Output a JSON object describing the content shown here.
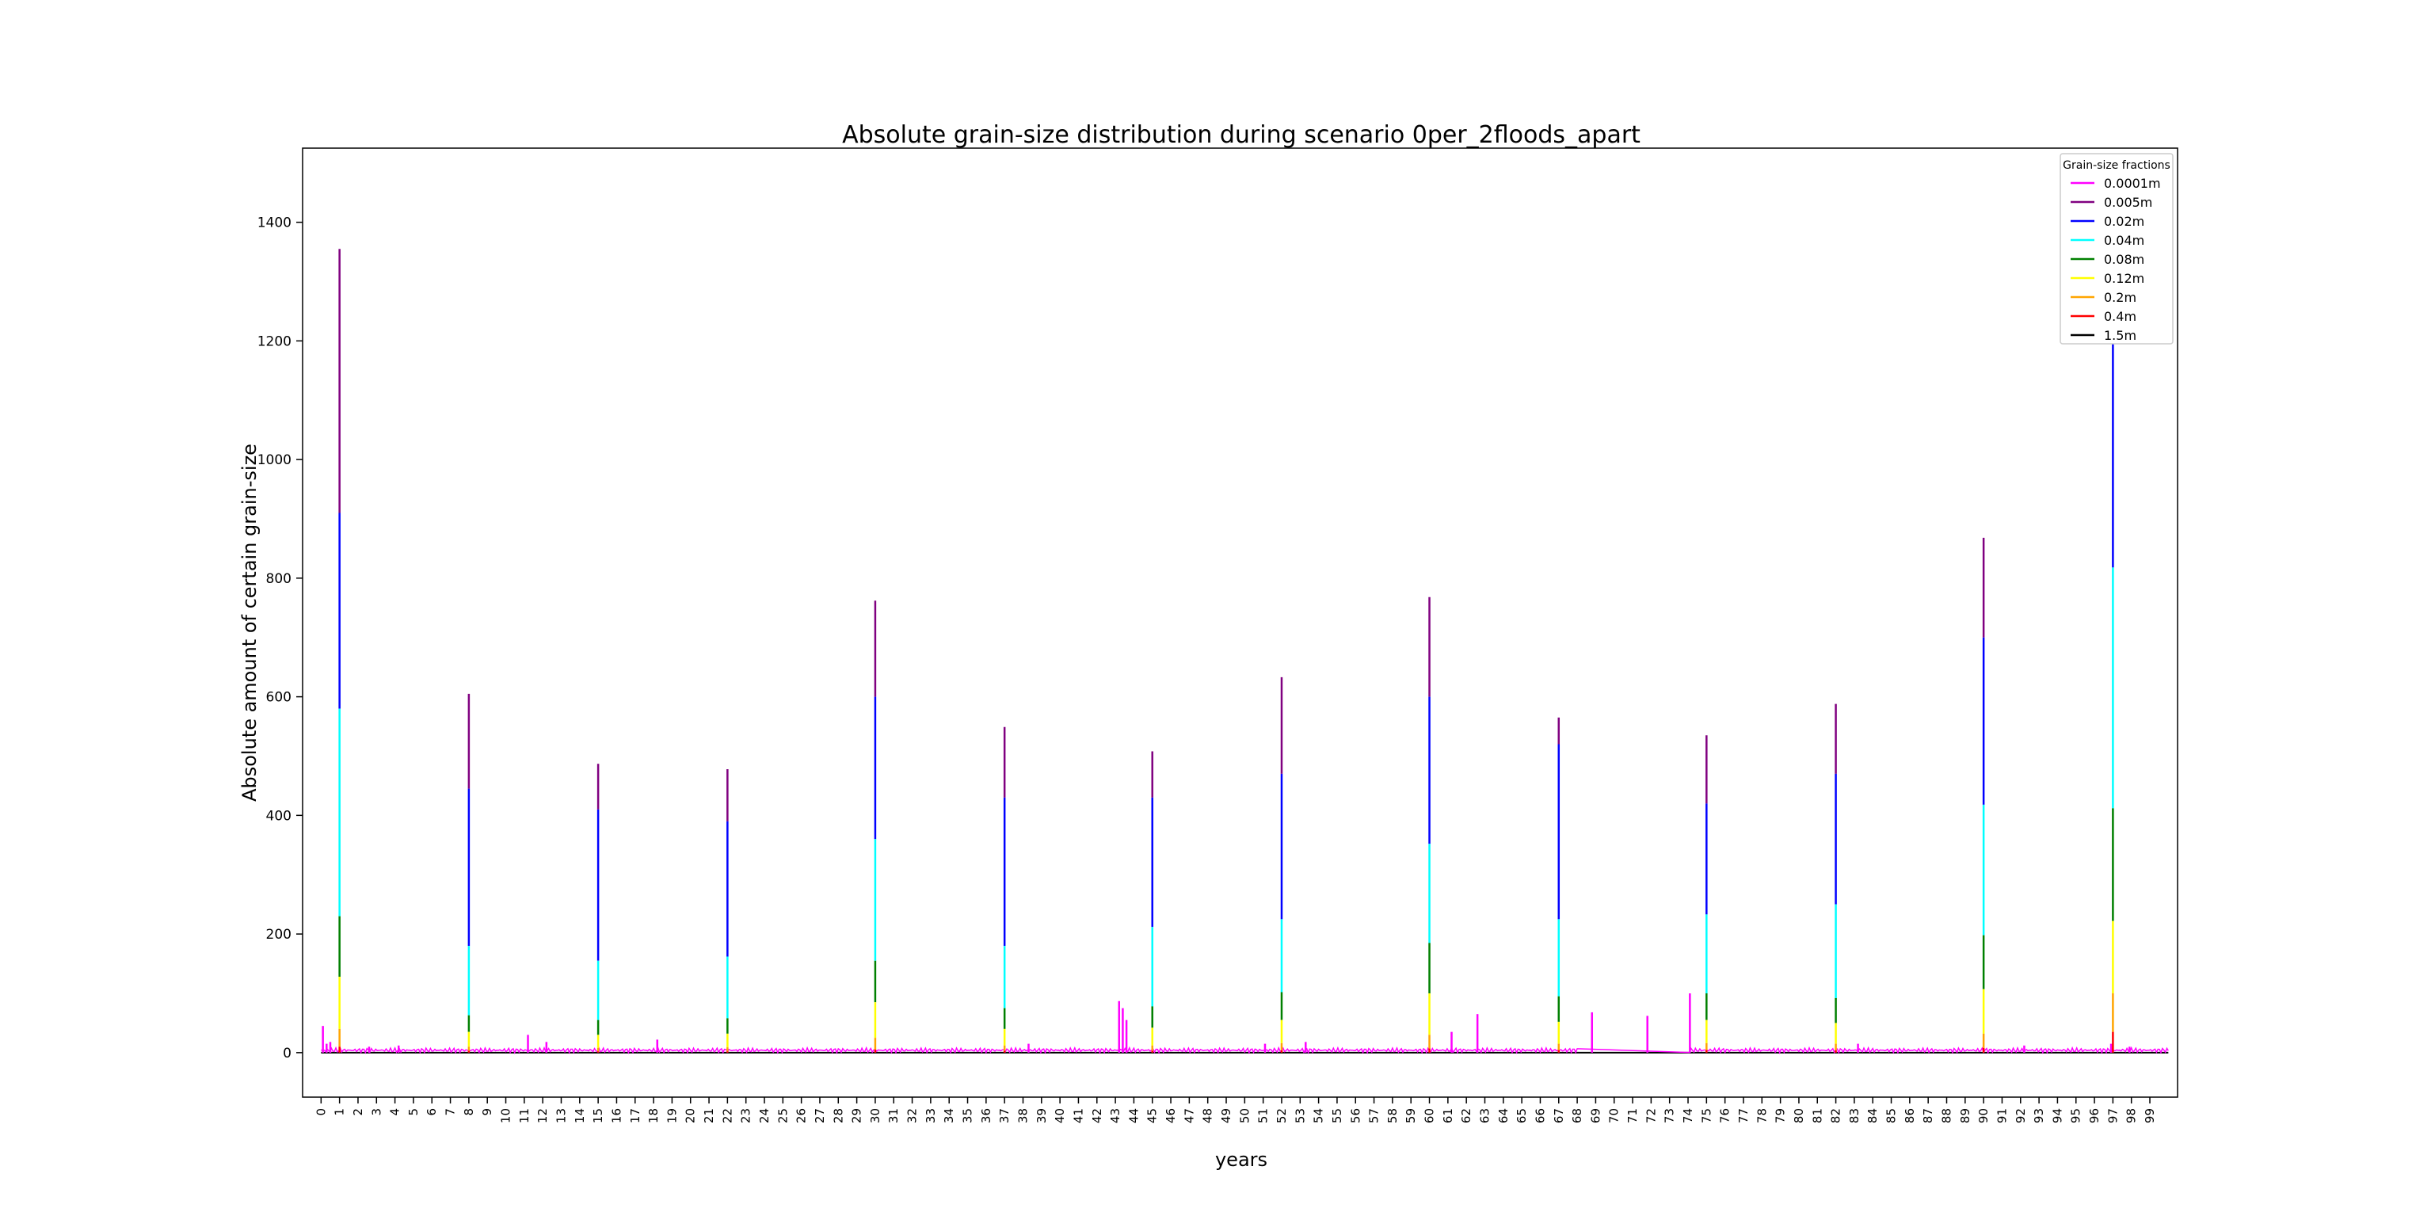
{
  "chart_data": {
    "type": "line",
    "title": "Absolute grain-size distribution during scenario 0per_2floods_apart",
    "xlabel": "years",
    "ylabel": "Absolute amount of certain grain-size",
    "xlim": [
      -1,
      100.5
    ],
    "ylim": [
      -75,
      1525
    ],
    "yticks": [
      0,
      200,
      400,
      600,
      800,
      1000,
      1200,
      1400
    ],
    "xtick_step": 1,
    "xtick_count": 100,
    "grid": false,
    "legend": {
      "title": "Grain-size fractions",
      "placement": "top-right"
    },
    "series": [
      {
        "name": "0.0001m",
        "color": "#ff00ff"
      },
      {
        "name": "0.005m",
        "color": "#800080"
      },
      {
        "name": "0.02m",
        "color": "#0000ff"
      },
      {
        "name": "0.04m",
        "color": "#00ffff"
      },
      {
        "name": "0.08m",
        "color": "#008000"
      },
      {
        "name": "0.12m",
        "color": "#ffff00"
      },
      {
        "name": "0.2m",
        "color": "#ffa500"
      },
      {
        "name": "0.4m",
        "color": "#ff0000"
      },
      {
        "name": "1.5m",
        "color": "#000000"
      }
    ],
    "flood_events": [
      {
        "year": 1,
        "cumulative": [
          1355,
          910,
          580,
          230,
          128,
          40,
          10
        ]
      },
      {
        "year": 8,
        "cumulative": [
          605,
          445,
          180,
          63,
          35,
          10,
          3
        ]
      },
      {
        "year": 15,
        "cumulative": [
          487,
          410,
          155,
          55,
          30,
          8,
          2
        ]
      },
      {
        "year": 22,
        "cumulative": [
          478,
          390,
          162,
          58,
          32,
          9,
          2
        ]
      },
      {
        "year": 30,
        "cumulative": [
          762,
          600,
          360,
          155,
          85,
          25,
          5
        ]
      },
      {
        "year": 37,
        "cumulative": [
          549,
          430,
          180,
          75,
          40,
          12,
          3
        ]
      },
      {
        "year": 45,
        "cumulative": [
          508,
          430,
          212,
          78,
          42,
          12,
          3
        ]
      },
      {
        "year": 52,
        "cumulative": [
          633,
          470,
          225,
          102,
          55,
          16,
          4
        ]
      },
      {
        "year": 60,
        "cumulative": [
          768,
          600,
          352,
          185,
          100,
          30,
          7
        ]
      },
      {
        "year": 67,
        "cumulative": [
          565,
          520,
          225,
          95,
          52,
          15,
          4
        ]
      },
      {
        "year": 75,
        "cumulative": [
          535,
          420,
          233,
          100,
          55,
          16,
          4
        ]
      },
      {
        "year": 82,
        "cumulative": [
          588,
          470,
          250,
          92,
          50,
          15,
          4
        ]
      },
      {
        "year": 90,
        "cumulative": [
          868,
          700,
          418,
          198,
          107,
          32,
          8
        ]
      },
      {
        "year": 97,
        "cumulative": [
          1448,
          1200,
          818,
          412,
          222,
          100,
          35
        ]
      }
    ],
    "fine_sediment_spikes": [
      {
        "year": 0.1,
        "value": 45
      },
      {
        "year": 0.3,
        "value": 15
      },
      {
        "year": 0.5,
        "value": 18
      },
      {
        "year": 2.6,
        "value": 10
      },
      {
        "year": 4.2,
        "value": 12
      },
      {
        "year": 11.2,
        "value": 30
      },
      {
        "year": 12.2,
        "value": 18
      },
      {
        "year": 18.2,
        "value": 22
      },
      {
        "year": 38.3,
        "value": 15
      },
      {
        "year": 43.2,
        "value": 87
      },
      {
        "year": 43.4,
        "value": 75
      },
      {
        "year": 43.6,
        "value": 55
      },
      {
        "year": 51.1,
        "value": 15
      },
      {
        "year": 53.3,
        "value": 18
      },
      {
        "year": 61.2,
        "value": 35
      },
      {
        "year": 62.6,
        "value": 65
      },
      {
        "year": 68.8,
        "value": 68
      },
      {
        "year": 71.8,
        "value": 62
      },
      {
        "year": 74.1,
        "value": 100
      },
      {
        "year": 83.2,
        "value": 15
      },
      {
        "year": 92.2,
        "value": 12
      },
      {
        "year": 96.9,
        "value": 15
      },
      {
        "year": 97.9,
        "value": 10
      }
    ],
    "baseline_noise": {
      "from": 0,
      "to": 100,
      "max": 8,
      "gap_from": 68,
      "gap_to": 74
    }
  }
}
